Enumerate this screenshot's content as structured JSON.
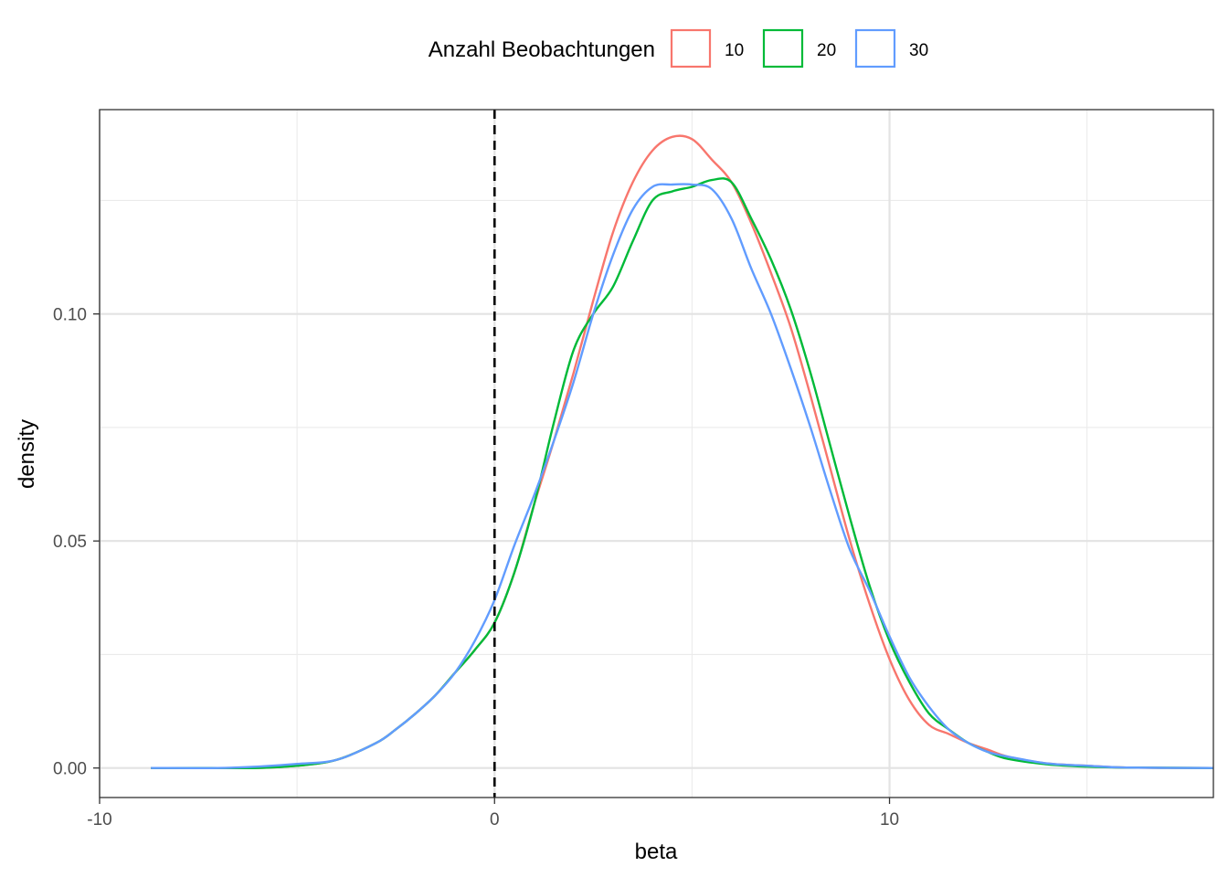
{
  "chart_data": {
    "type": "line",
    "subtype": "density",
    "title": "",
    "xlabel": "beta",
    "ylabel": "density",
    "xlim": [
      -10,
      18.2
    ],
    "ylim": [
      -0.0065,
      0.145
    ],
    "x_ticks": [
      -10,
      0,
      10
    ],
    "x_tick_labels": [
      "-10",
      "0",
      "10"
    ],
    "y_ticks": [
      0.0,
      0.05,
      0.1
    ],
    "y_tick_labels": [
      "0.00",
      "0.05",
      "0.10"
    ],
    "grid": true,
    "theme": "bw",
    "reference_line": {
      "type": "vline",
      "x": 0,
      "style": "dashed",
      "color": "#000000"
    },
    "legend": {
      "title": "Anzahl Beobachtungen",
      "position": "top",
      "entries": [
        "10",
        "20",
        "30"
      ]
    },
    "series": [
      {
        "name": "10",
        "color": "#F8766D",
        "x": [
          -8.7,
          -7,
          -6,
          -5,
          -4,
          -3,
          -2.5,
          -2,
          -1.5,
          -1,
          -0.5,
          0,
          0.5,
          1,
          1.5,
          2,
          2.5,
          3,
          3.5,
          4,
          4.5,
          5,
          5.5,
          6,
          6.5,
          7,
          7.5,
          8,
          8.5,
          9,
          9.5,
          10,
          10.5,
          11,
          11.5,
          12,
          12.5,
          13,
          14,
          15,
          16,
          18.2
        ],
        "y": [
          0.0,
          0.0,
          0.0,
          0.0005,
          0.0018,
          0.0055,
          0.0085,
          0.012,
          0.016,
          0.021,
          0.026,
          0.032,
          0.043,
          0.058,
          0.072,
          0.087,
          0.103,
          0.118,
          0.129,
          0.136,
          0.139,
          0.1385,
          0.134,
          0.129,
          0.12,
          0.109,
          0.097,
          0.082,
          0.066,
          0.05,
          0.036,
          0.024,
          0.015,
          0.0095,
          0.0075,
          0.0055,
          0.004,
          0.0025,
          0.001,
          0.0005,
          0.0001,
          0.0
        ]
      },
      {
        "name": "20",
        "color": "#00BA38",
        "x": [
          -8.7,
          -7,
          -6,
          -5,
          -4,
          -3,
          -2.5,
          -2,
          -1.5,
          -1,
          -0.5,
          0,
          0.5,
          1,
          1.5,
          2,
          2.5,
          3,
          3.5,
          4,
          4.5,
          5,
          5.5,
          6,
          6.5,
          7,
          7.5,
          8,
          8.5,
          9,
          9.5,
          10,
          10.5,
          11,
          11.5,
          12,
          12.5,
          13,
          14,
          15,
          16,
          18.2
        ],
        "y": [
          0.0,
          0.0,
          0.0,
          0.0005,
          0.0018,
          0.0055,
          0.0085,
          0.012,
          0.016,
          0.021,
          0.026,
          0.032,
          0.043,
          0.058,
          0.076,
          0.092,
          0.1,
          0.106,
          0.116,
          0.125,
          0.127,
          0.128,
          0.1295,
          0.129,
          0.121,
          0.112,
          0.101,
          0.087,
          0.071,
          0.055,
          0.04,
          0.028,
          0.019,
          0.012,
          0.0085,
          0.0055,
          0.0035,
          0.002,
          0.0008,
          0.0003,
          0.0001,
          0.0
        ]
      },
      {
        "name": "30",
        "color": "#619CFF",
        "x": [
          -8.7,
          -7,
          -6,
          -5,
          -4,
          -3,
          -2.5,
          -2,
          -1.5,
          -1,
          -0.5,
          0,
          0.5,
          1,
          1.5,
          2,
          2.5,
          3,
          3.5,
          4,
          4.5,
          5,
          5.5,
          6,
          6.5,
          7,
          7.5,
          8,
          8.5,
          9,
          9.5,
          10,
          10.5,
          11,
          11.5,
          12,
          12.5,
          13,
          14,
          15,
          16,
          18.2
        ],
        "y": [
          0.0,
          0.0,
          0.0003,
          0.0009,
          0.0018,
          0.0055,
          0.0085,
          0.012,
          0.016,
          0.021,
          0.028,
          0.037,
          0.049,
          0.06,
          0.072,
          0.085,
          0.1,
          0.113,
          0.123,
          0.128,
          0.1285,
          0.1285,
          0.1275,
          0.121,
          0.11,
          0.1,
          0.088,
          0.075,
          0.061,
          0.048,
          0.039,
          0.029,
          0.02,
          0.0135,
          0.0085,
          0.0055,
          0.0035,
          0.0025,
          0.001,
          0.0005,
          0.0001,
          0.0
        ]
      }
    ]
  }
}
